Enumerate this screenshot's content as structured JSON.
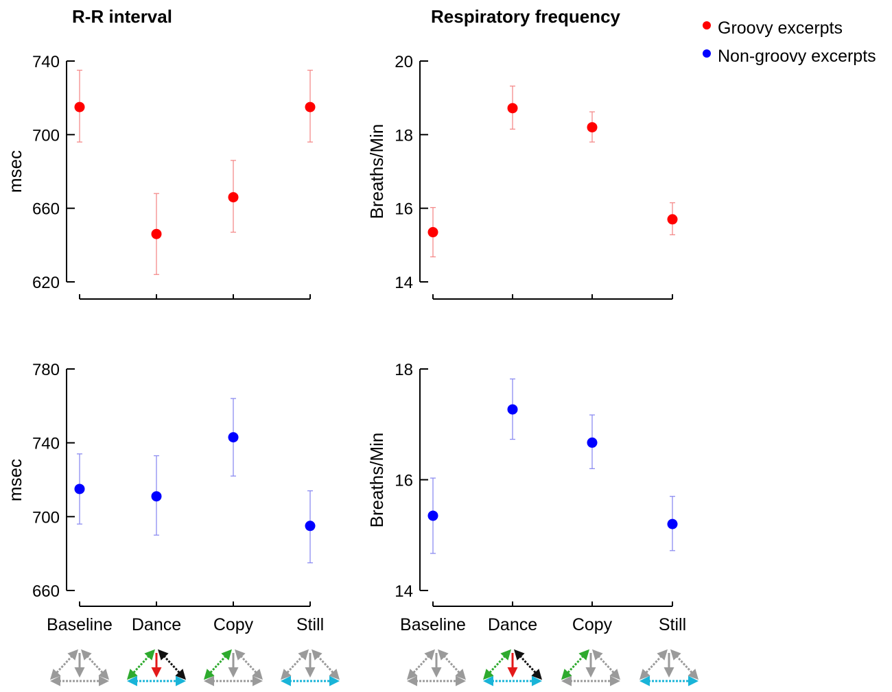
{
  "column_titles": {
    "left": "R-R interval",
    "right": "Respiratory frequency"
  },
  "legend": {
    "entries": [
      {
        "label": "Groovy excerpts",
        "color": "#ff0000"
      },
      {
        "label": "Non-groovy excerpts",
        "color": "#0000ff"
      }
    ]
  },
  "categories": [
    "Baseline",
    "Dance",
    "Copy",
    "Still"
  ],
  "chart_data": [
    {
      "type": "scatter",
      "panel": "top-left",
      "title": "R-R interval",
      "series_name": "Groovy excerpts",
      "ylabel": "msec",
      "ylim": [
        620,
        740
      ],
      "yticks": [
        620,
        660,
        700,
        740
      ],
      "categories": [
        "Baseline",
        "Dance",
        "Copy",
        "Still"
      ],
      "values": [
        715,
        646,
        666,
        715
      ],
      "err_low": [
        696,
        624,
        647,
        696
      ],
      "err_high": [
        735,
        668,
        686,
        735
      ],
      "color": "#ff0000",
      "errcolor": "#f48a8a"
    },
    {
      "type": "scatter",
      "panel": "top-right",
      "title": "Respiratory frequency",
      "series_name": "Groovy excerpts",
      "ylabel": "Breaths/Min",
      "ylim": [
        14,
        20
      ],
      "yticks": [
        14,
        16,
        18,
        20
      ],
      "categories": [
        "Baseline",
        "Dance",
        "Copy",
        "Still"
      ],
      "values": [
        15.35,
        18.72,
        18.2,
        15.7
      ],
      "err_low": [
        14.68,
        18.15,
        17.8,
        15.28
      ],
      "err_high": [
        16.02,
        19.32,
        18.62,
        16.15
      ],
      "color": "#ff0000",
      "errcolor": "#f48a8a"
    },
    {
      "type": "scatter",
      "panel": "bottom-left",
      "title": "R-R interval",
      "series_name": "Non-groovy excerpts",
      "ylabel": "msec",
      "ylim": [
        660,
        780
      ],
      "yticks": [
        660,
        700,
        740,
        780
      ],
      "categories": [
        "Baseline",
        "Dance",
        "Copy",
        "Still"
      ],
      "values": [
        715,
        711,
        743,
        695
      ],
      "err_low": [
        696,
        690,
        722,
        675
      ],
      "err_high": [
        734,
        733,
        764,
        714
      ],
      "color": "#0000ff",
      "errcolor": "#8c8cf0"
    },
    {
      "type": "scatter",
      "panel": "bottom-right",
      "title": "Respiratory frequency",
      "series_name": "Non-groovy excerpts",
      "ylabel": "Breaths/Min",
      "ylim": [
        14,
        18
      ],
      "yticks": [
        14,
        16,
        18
      ],
      "categories": [
        "Baseline",
        "Dance",
        "Copy",
        "Still"
      ],
      "values": [
        15.35,
        17.27,
        16.67,
        15.2
      ],
      "err_low": [
        14.67,
        16.73,
        16.2,
        14.72
      ],
      "err_high": [
        16.03,
        17.82,
        17.17,
        15.7
      ],
      "color": "#0000ff",
      "errcolor": "#8c8cf0"
    }
  ],
  "condition_icons": [
    {
      "condition": "Baseline",
      "left": "#9a9a9a",
      "right": "#9a9a9a",
      "bottom": "#9a9a9a",
      "center": "#9a9a9a"
    },
    {
      "condition": "Dance",
      "left": "#2eaa2e",
      "right": "#111111",
      "bottom": "#19b4d8",
      "center": "#e31a1a"
    },
    {
      "condition": "Copy",
      "left": "#2eaa2e",
      "right": "#9a9a9a",
      "bottom": "#9a9a9a",
      "center": "#9a9a9a"
    },
    {
      "condition": "Still",
      "left": "#9a9a9a",
      "right": "#9a9a9a",
      "bottom": "#19b4d8",
      "center": "#9a9a9a"
    }
  ]
}
